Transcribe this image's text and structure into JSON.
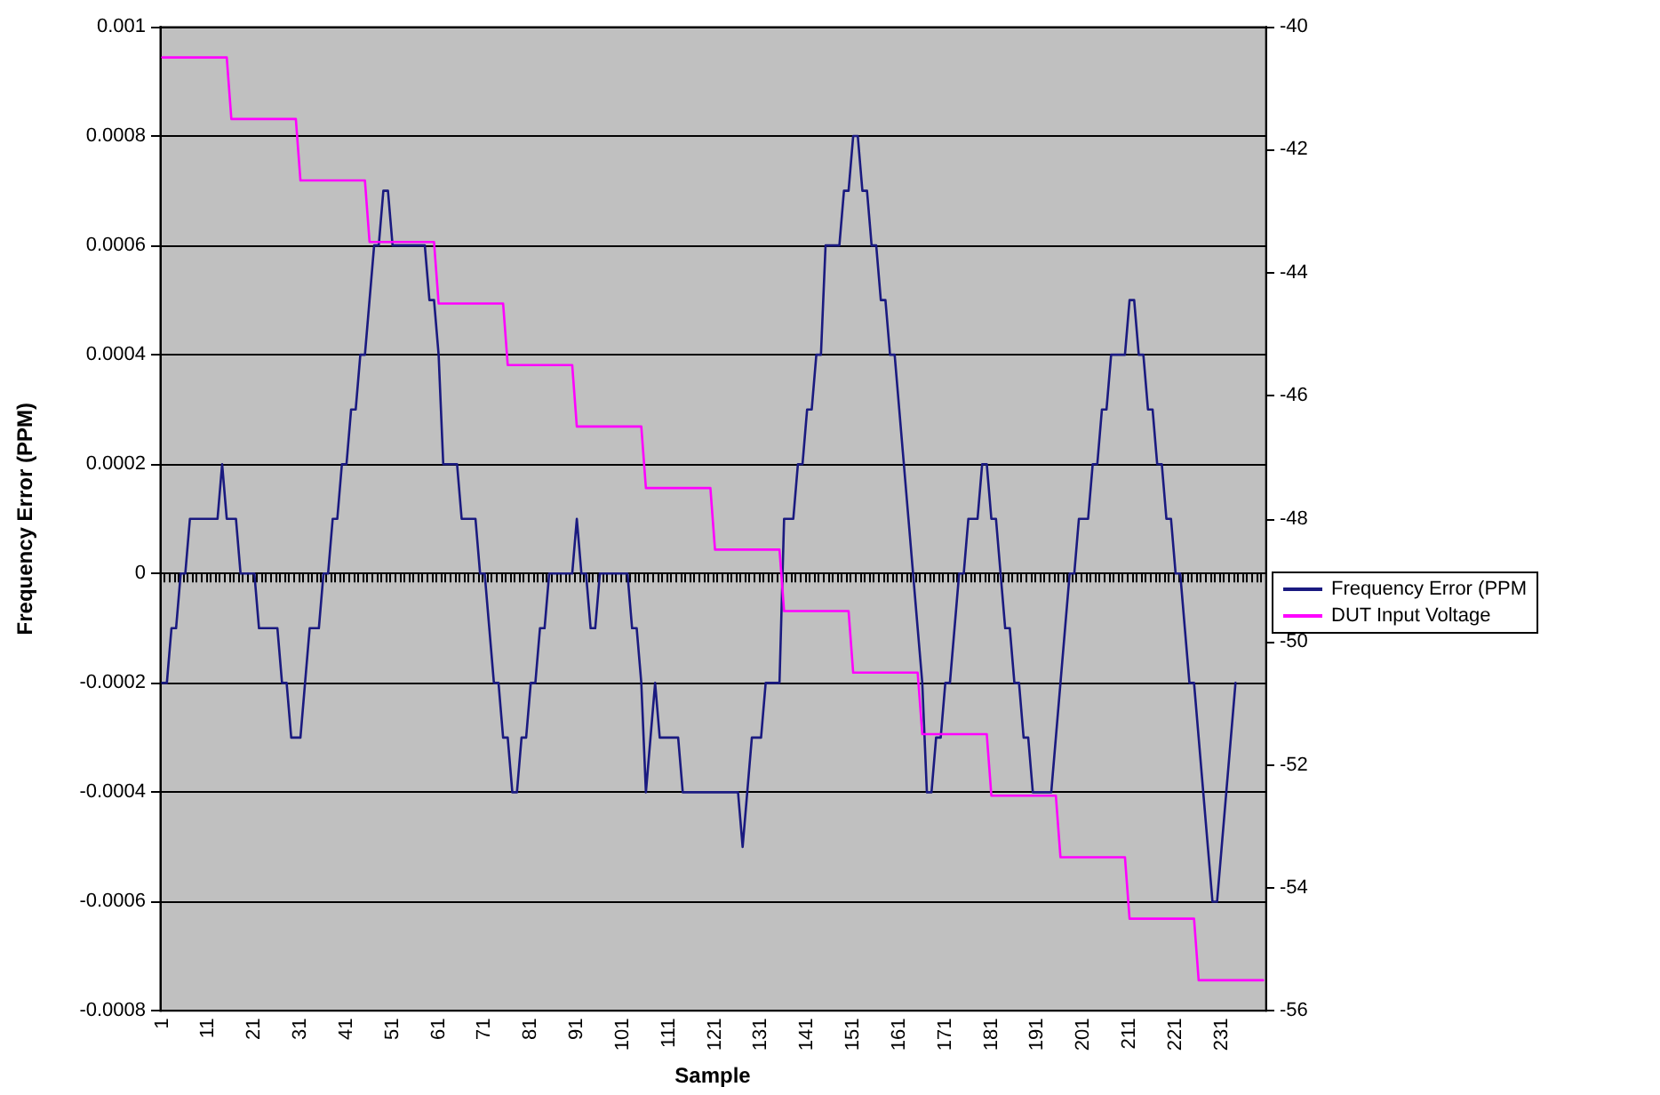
{
  "chart_data": {
    "type": "line",
    "xlabel": "Sample",
    "ylabel": "Frequency Error (PPM)",
    "categories": [
      "1",
      null,
      null,
      null,
      null,
      null,
      null,
      null,
      null,
      null,
      "11",
      null,
      null,
      null,
      null,
      null,
      null,
      null,
      null,
      null,
      "21",
      null,
      null,
      null,
      null,
      null,
      null,
      null,
      null,
      null,
      "31",
      null,
      null,
      null,
      null,
      null,
      null,
      null,
      null,
      null,
      "41",
      null,
      null,
      null,
      null,
      null,
      null,
      null,
      null,
      null,
      "51",
      null,
      null,
      null,
      null,
      null,
      null,
      null,
      null,
      null,
      "61",
      null,
      null,
      null,
      null,
      null,
      null,
      null,
      null,
      null,
      "71",
      null,
      null,
      null,
      null,
      null,
      null,
      null,
      null,
      null,
      "81",
      null,
      null,
      null,
      null,
      null,
      null,
      null,
      null,
      null,
      "91",
      null,
      null,
      null,
      null,
      null,
      null,
      null,
      null,
      null,
      "101",
      null,
      null,
      null,
      null,
      null,
      null,
      null,
      null,
      null,
      "111",
      null,
      null,
      null,
      null,
      null,
      null,
      null,
      null,
      null,
      "121",
      null,
      null,
      null,
      null,
      null,
      null,
      null,
      null,
      null,
      "131",
      null,
      null,
      null,
      null,
      null,
      null,
      null,
      null,
      null,
      "141",
      null,
      null,
      null,
      null,
      null,
      null,
      null,
      null,
      null,
      "151",
      null,
      null,
      null,
      null,
      null,
      null,
      null,
      null,
      null,
      "161",
      null,
      null,
      null,
      null,
      null,
      null,
      null,
      null,
      null,
      "171",
      null,
      null,
      null,
      null,
      null,
      null,
      null,
      null,
      null,
      "181",
      null,
      null,
      null,
      null,
      null,
      null,
      null,
      null,
      null,
      "191",
      null,
      null,
      null,
      null,
      null,
      null,
      null,
      null,
      null,
      "201",
      null,
      null,
      null,
      null,
      null,
      null,
      null,
      null,
      null,
      "211",
      null,
      null,
      null,
      null,
      null,
      null,
      null,
      null,
      null,
      "221",
      null,
      null,
      null,
      null,
      null,
      null,
      null,
      null,
      null,
      "231",
      null,
      null,
      null,
      null,
      null,
      null,
      null,
      null,
      null
    ],
    "series": [
      {
        "name": "Frequency Error (PPM",
        "color": "#1a1a80",
        "values": [
          -0.0002,
          -0.0002,
          -0.0001,
          -0.0001,
          0,
          0,
          0.0001,
          0.0001,
          0.0001,
          0.0001,
          0.0001,
          0.0001,
          0.0001,
          0.0002,
          0.0001,
          0.0001,
          0.0001,
          0,
          0,
          0,
          0,
          -0.0001,
          -0.0001,
          -0.0001,
          -0.0001,
          -0.0001,
          -0.0002,
          -0.0002,
          -0.0003,
          -0.0003,
          -0.0003,
          -0.0002,
          -0.0001,
          -0.0001,
          -0.0001,
          0,
          0,
          0.0001,
          0.0001,
          0.0002,
          0.0002,
          0.0003,
          0.0003,
          0.0004,
          0.0004,
          0.0005,
          0.0006,
          0.0006,
          0.0007,
          0.0007,
          0.0006,
          0.0006,
          0.0006,
          0.0006,
          0.0006,
          0.0006,
          0.0006,
          0.0006,
          0.0005,
          0.0005,
          0.0004,
          0.0002,
          0.0002,
          0.0002,
          0.0002,
          0.0001,
          0.0001,
          0.0001,
          0.0001,
          0,
          0,
          -0.0001,
          -0.0002,
          -0.0002,
          -0.0003,
          -0.0003,
          -0.0004,
          -0.0004,
          -0.0003,
          -0.0003,
          -0.0002,
          -0.0002,
          -0.0001,
          -0.0001,
          0,
          0,
          0,
          0,
          0,
          0,
          0.0001,
          0,
          0,
          -0.0001,
          -0.0001,
          0,
          0,
          0,
          0,
          0,
          0,
          0,
          -0.0001,
          -0.0001,
          -0.0002,
          -0.0004,
          -0.0003,
          -0.0002,
          -0.0003,
          -0.0003,
          -0.0003,
          -0.0003,
          -0.0003,
          -0.0004,
          -0.0004,
          -0.0004,
          -0.0004,
          -0.0004,
          -0.0004,
          -0.0004,
          -0.0004,
          -0.0004,
          -0.0004,
          -0.0004,
          -0.0004,
          -0.0004,
          -0.0005,
          -0.0004,
          -0.0003,
          -0.0003,
          -0.0003,
          -0.0002,
          -0.0002,
          -0.0002,
          -0.0002,
          0.0001,
          0.0001,
          0.0001,
          0.0002,
          0.0002,
          0.0003,
          0.0003,
          0.0004,
          0.0004,
          0.0006,
          0.0006,
          0.0006,
          0.0006,
          0.0007,
          0.0007,
          0.0008,
          0.0008,
          0.0007,
          0.0007,
          0.0006,
          0.0006,
          0.0005,
          0.0005,
          0.0004,
          0.0004,
          0.0003,
          0.0002,
          0.0001,
          0,
          -0.0001,
          -0.0002,
          -0.0004,
          -0.0004,
          -0.0003,
          -0.0003,
          -0.0002,
          -0.0002,
          -0.0001,
          0,
          0,
          0.0001,
          0.0001,
          0.0001,
          0.0002,
          0.0002,
          0.0001,
          0.0001,
          0,
          -0.0001,
          -0.0001,
          -0.0002,
          -0.0002,
          -0.0003,
          -0.0003,
          -0.0004,
          -0.0004,
          -0.0004,
          -0.0004,
          -0.0004,
          -0.0003,
          -0.0002,
          -0.0001,
          0,
          0,
          0.0001,
          0.0001,
          0.0001,
          0.0002,
          0.0002,
          0.0003,
          0.0003,
          0.0004,
          0.0004,
          0.0004,
          0.0004,
          0.0005,
          0.0005,
          0.0004,
          0.0004,
          0.0003,
          0.0003,
          0.0002,
          0.0002,
          0.0001,
          0.0001,
          0,
          0,
          -0.0001,
          -0.0002,
          -0.0002,
          -0.0003,
          -0.0004,
          -0.0005,
          -0.0006,
          -0.0006,
          -0.0005,
          -0.0004,
          -0.0003,
          -0.0002,
          null,
          null,
          null,
          null,
          null,
          null
        ]
      },
      {
        "name": "DUT Input Voltage",
        "color": "#ff00ff",
        "axis": "y2",
        "values": [
          -40.5,
          -40.5,
          -40.5,
          -40.5,
          -40.5,
          -40.5,
          -40.5,
          -40.5,
          -40.5,
          -40.5,
          -40.5,
          -40.5,
          -40.5,
          -40.5,
          -40.5,
          -41.5,
          -41.5,
          -41.5,
          -41.5,
          -41.5,
          -41.5,
          -41.5,
          -41.5,
          -41.5,
          -41.5,
          -41.5,
          -41.5,
          -41.5,
          -41.5,
          -41.5,
          -42.5,
          -42.5,
          -42.5,
          -42.5,
          -42.5,
          -42.5,
          -42.5,
          -42.5,
          -42.5,
          -42.5,
          -42.5,
          -42.5,
          -42.5,
          -42.5,
          -42.5,
          -43.5,
          -43.5,
          -43.5,
          -43.5,
          -43.5,
          -43.5,
          -43.5,
          -43.5,
          -43.5,
          -43.5,
          -43.5,
          -43.5,
          -43.5,
          -43.5,
          -43.5,
          -44.5,
          -44.5,
          -44.5,
          -44.5,
          -44.5,
          -44.5,
          -44.5,
          -44.5,
          -44.5,
          -44.5,
          -44.5,
          -44.5,
          -44.5,
          -44.5,
          -44.5,
          -45.5,
          -45.5,
          -45.5,
          -45.5,
          -45.5,
          -45.5,
          -45.5,
          -45.5,
          -45.5,
          -45.5,
          -45.5,
          -45.5,
          -45.5,
          -45.5,
          -45.5,
          -46.5,
          -46.5,
          -46.5,
          -46.5,
          -46.5,
          -46.5,
          -46.5,
          -46.5,
          -46.5,
          -46.5,
          -46.5,
          -46.5,
          -46.5,
          -46.5,
          -46.5,
          -47.5,
          -47.5,
          -47.5,
          -47.5,
          -47.5,
          -47.5,
          -47.5,
          -47.5,
          -47.5,
          -47.5,
          -47.5,
          -47.5,
          -47.5,
          -47.5,
          -47.5,
          -48.5,
          -48.5,
          -48.5,
          -48.5,
          -48.5,
          -48.5,
          -48.5,
          -48.5,
          -48.5,
          -48.5,
          -48.5,
          -48.5,
          -48.5,
          -48.5,
          -48.5,
          -49.5,
          -49.5,
          -49.5,
          -49.5,
          -49.5,
          -49.5,
          -49.5,
          -49.5,
          -49.5,
          -49.5,
          -49.5,
          -49.5,
          -49.5,
          -49.5,
          -49.5,
          -50.5,
          -50.5,
          -50.5,
          -50.5,
          -50.5,
          -50.5,
          -50.5,
          -50.5,
          -50.5,
          -50.5,
          -50.5,
          -50.5,
          -50.5,
          -50.5,
          -50.5,
          -51.5,
          -51.5,
          -51.5,
          -51.5,
          -51.5,
          -51.5,
          -51.5,
          -51.5,
          -51.5,
          -51.5,
          -51.5,
          -51.5,
          -51.5,
          -51.5,
          -51.5,
          -52.5,
          -52.5,
          -52.5,
          -52.5,
          -52.5,
          -52.5,
          -52.5,
          -52.5,
          -52.5,
          -52.5,
          -52.5,
          -52.5,
          -52.5,
          -52.5,
          -52.5,
          -53.5,
          -53.5,
          -53.5,
          -53.5,
          -53.5,
          -53.5,
          -53.5,
          -53.5,
          -53.5,
          -53.5,
          -53.5,
          -53.5,
          -53.5,
          -53.5,
          -53.5,
          -54.5,
          -54.5,
          -54.5,
          -54.5,
          -54.5,
          -54.5,
          -54.5,
          -54.5,
          -54.5,
          -54.5,
          -54.5,
          -54.5,
          -54.5,
          -54.5,
          -54.5,
          -55.5,
          -55.5,
          -55.5,
          -55.5,
          -55.5,
          -55.5,
          -55.5,
          -55.5,
          -55.5,
          -55.5,
          -55.5,
          -55.5,
          -55.5,
          -55.5,
          -55.5
        ]
      }
    ],
    "ylim": [
      -0.0008,
      0.001
    ],
    "yticks": [
      -0.0008,
      -0.0006,
      -0.0004,
      -0.0002,
      0,
      0.0002,
      0.0004,
      0.0006,
      0.0008,
      0.001
    ],
    "y2lim": [
      -56,
      -40
    ],
    "y2ticks": [
      -56,
      -54,
      -52,
      -50,
      -48,
      -46,
      -44,
      -42,
      -40
    ],
    "grid": "y",
    "legend": "right",
    "marker": "none",
    "line_style": "solid"
  }
}
